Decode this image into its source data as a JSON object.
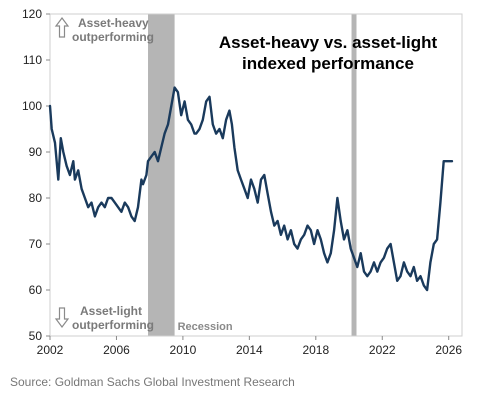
{
  "chart_data": {
    "type": "line",
    "title": "Asset-heavy vs. asset-light indexed performance",
    "title_lines": [
      "Asset-heavy vs. asset-light",
      "indexed performance"
    ],
    "xlabel": "",
    "ylabel": "",
    "xlim": [
      2002,
      2026.8
    ],
    "ylim": [
      50,
      120
    ],
    "x_ticks": [
      2002,
      2006,
      2010,
      2014,
      2018,
      2022,
      2026
    ],
    "y_ticks": [
      50,
      60,
      70,
      80,
      90,
      100,
      110,
      120
    ],
    "grid": false,
    "legend": "none",
    "line_color": "#1a3a5c",
    "recession_color": "#b5b5b5",
    "recession_label": "Recession",
    "recessions": [
      [
        2007.9,
        2009.5
      ],
      [
        2020.15,
        2020.45
      ]
    ],
    "annotations": {
      "top_line1": "Asset-heavy",
      "top_line2": "outperforming",
      "bottom_line1": "Asset-light",
      "bottom_line2": "outperforming",
      "arrow_up_icon": "up-arrow-icon",
      "arrow_down_icon": "down-arrow-icon"
    },
    "series": [
      {
        "x": [
          2002.0,
          2002.1,
          2002.3,
          2002.5,
          2002.65,
          2002.8,
          2003.0,
          2003.2,
          2003.4,
          2003.5,
          2003.7,
          2003.9,
          2004.1,
          2004.3,
          2004.5,
          2004.7,
          2004.9,
          2005.1,
          2005.3,
          2005.5,
          2005.7,
          2005.9,
          2006.1,
          2006.3,
          2006.5,
          2006.7,
          2006.9,
          2007.1,
          2007.3,
          2007.5,
          2007.6,
          2007.8,
          2007.9,
          2008.1,
          2008.3,
          2008.5,
          2008.7,
          2008.9,
          2009.1,
          2009.3,
          2009.5,
          2009.7,
          2009.9,
          2010.1,
          2010.3,
          2010.5,
          2010.7,
          2010.8,
          2011.0,
          2011.2,
          2011.4,
          2011.6,
          2011.8,
          2012.0,
          2012.2,
          2012.4,
          2012.6,
          2012.8,
          2012.95,
          2013.1,
          2013.3,
          2013.5,
          2013.7,
          2013.9,
          2014.1,
          2014.3,
          2014.5,
          2014.7,
          2014.9,
          2015.1,
          2015.3,
          2015.5,
          2015.7,
          2015.9,
          2016.1,
          2016.3,
          2016.5,
          2016.7,
          2016.9,
          2017.1,
          2017.3,
          2017.5,
          2017.7,
          2017.9,
          2018.1,
          2018.3,
          2018.5,
          2018.7,
          2018.9,
          2019.1,
          2019.3,
          2019.5,
          2019.7,
          2019.9,
          2020.1,
          2020.3,
          2020.5,
          2020.7,
          2020.9,
          2021.1,
          2021.3,
          2021.5,
          2021.7,
          2021.9,
          2022.1,
          2022.3,
          2022.5,
          2022.7,
          2022.9,
          2023.1,
          2023.3,
          2023.5,
          2023.7,
          2023.9,
          2024.1,
          2024.3,
          2024.5,
          2024.7,
          2024.9,
          2025.1,
          2025.3,
          2025.5,
          2025.7,
          2025.85,
          2026.0,
          2026.1,
          2026.2
        ],
        "y": [
          100.0,
          95.0,
          92.0,
          84.0,
          93.0,
          90.0,
          87.0,
          85.0,
          88.0,
          84.0,
          86.0,
          82.0,
          80.0,
          78.0,
          79.0,
          76.0,
          78.0,
          79.0,
          78.0,
          80.0,
          80.0,
          79.0,
          78.0,
          77.0,
          79.0,
          78.0,
          76.0,
          75.0,
          78.0,
          84.0,
          83.0,
          85.0,
          88.0,
          89.0,
          90.0,
          88.0,
          91.0,
          94.0,
          96.0,
          100.0,
          104.0,
          103.0,
          98.0,
          101.0,
          97.0,
          96.0,
          94.0,
          94.0,
          95.0,
          97.0,
          101.0,
          102.0,
          96.0,
          94.0,
          95.0,
          93.0,
          97.0,
          99.0,
          96.0,
          91.0,
          86.0,
          84.0,
          82.0,
          80.0,
          84.0,
          82.0,
          79.0,
          84.0,
          85.0,
          81.0,
          77.0,
          74.0,
          75.0,
          72.0,
          74.0,
          71.0,
          73.0,
          70.0,
          69.0,
          71.0,
          72.0,
          74.0,
          73.0,
          70.0,
          73.0,
          71.0,
          68.0,
          66.0,
          68.0,
          73.0,
          80.0,
          75.0,
          71.0,
          73.0,
          69.0,
          67.0,
          65.0,
          68.0,
          64.0,
          63.0,
          64.0,
          66.0,
          64.0,
          66.0,
          67.0,
          69.0,
          70.0,
          66.0,
          62.0,
          63.0,
          66.0,
          64.0,
          63.0,
          65.0,
          62.0,
          63.0,
          61.0,
          60.0,
          66.0,
          70.0,
          71.0,
          79.0,
          88.0,
          88.0,
          88.0,
          88.0,
          88.0
        ]
      }
    ]
  },
  "source": "Source: Goldman Sachs Global Investment Research"
}
